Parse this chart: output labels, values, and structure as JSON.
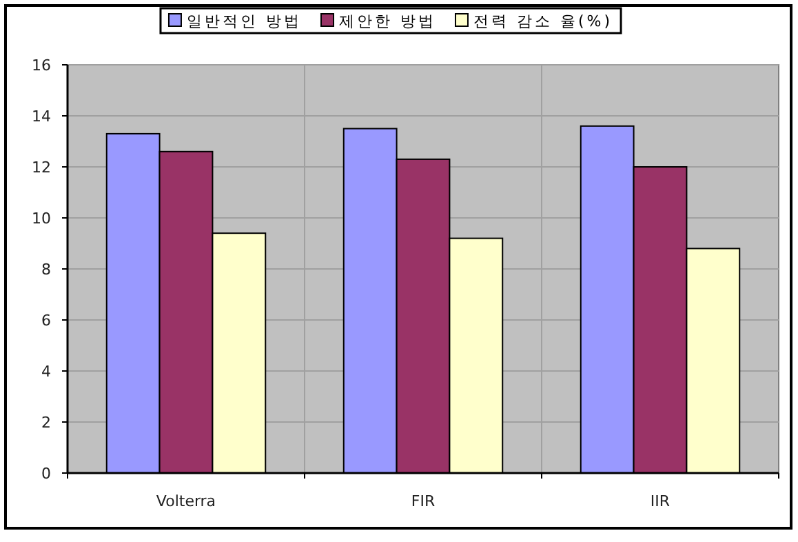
{
  "chart_data": {
    "type": "bar",
    "categories": [
      "Volterra",
      "FIR",
      "IIR"
    ],
    "series": [
      {
        "name": "일반적인 방법",
        "color": "#9999ff",
        "values": [
          13.3,
          13.5,
          13.6
        ]
      },
      {
        "name": "제안한 방법",
        "color": "#993366",
        "values": [
          12.6,
          12.3,
          12.0
        ]
      },
      {
        "name": "전력 감소 율(%)",
        "color": "#ffffcc",
        "values": [
          9.4,
          9.2,
          8.8
        ]
      }
    ],
    "ylim": [
      0,
      16
    ],
    "yticks": [
      0,
      2,
      4,
      6,
      8,
      10,
      12,
      14,
      16
    ],
    "grid": true,
    "legend": "top"
  }
}
